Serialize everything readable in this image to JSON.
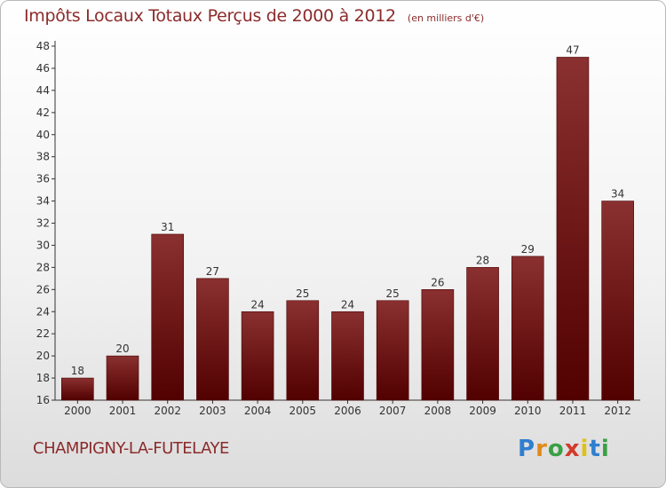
{
  "chart_data": {
    "type": "bar",
    "title": "Impôts Locaux Totaux Perçus de 2000 à 2012",
    "subtitle": "(en milliers d'€)",
    "categories": [
      "2000",
      "2001",
      "2002",
      "2003",
      "2004",
      "2005",
      "2006",
      "2007",
      "2008",
      "2009",
      "2010",
      "2011",
      "2012"
    ],
    "values": [
      18,
      20,
      31,
      27,
      24,
      25,
      24,
      25,
      26,
      28,
      29,
      47,
      34
    ],
    "ylim": [
      16,
      48
    ],
    "yticks": [
      16,
      18,
      20,
      22,
      24,
      26,
      28,
      30,
      32,
      34,
      36,
      38,
      40,
      42,
      44,
      46,
      48
    ],
    "grid": false,
    "bar_color": "#7a1a1a"
  },
  "place_name": "CHAMPIGNY-LA-FUTELAYE",
  "brand": {
    "letters": [
      "P",
      "r",
      "o",
      "x",
      "i",
      "t",
      "i"
    ],
    "colors": [
      "#2f7fd0",
      "#e08a1a",
      "#3aa046",
      "#d43a2a",
      "#e0c01a",
      "#2f7fd0",
      "#3aa046"
    ]
  }
}
